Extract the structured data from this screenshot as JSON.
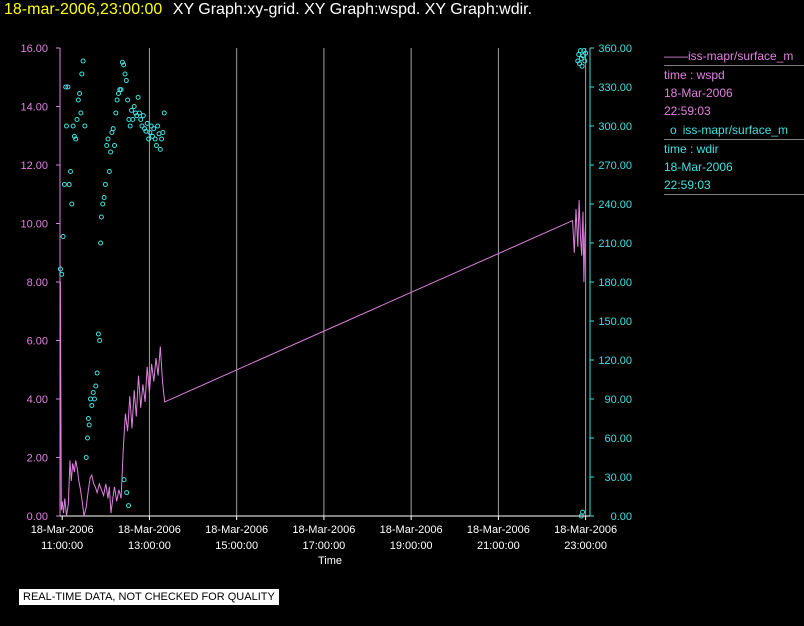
{
  "header": {
    "timestamp": "18-mar-2006,23:00:00",
    "titles": "XY Graph:xy-grid.  XY Graph:wspd.  XY Graph:wdir."
  },
  "legend": [
    {
      "symbol": "——",
      "name": "iss-mapr/surface_m",
      "line2": "time : wspd",
      "line3": "18-Mar-2006",
      "line4": "22:59:03",
      "color": "#e080e0"
    },
    {
      "symbol": "o",
      "name": "iss-mapr/surface_m",
      "line2": "time : wdir",
      "line3": "18-Mar-2006",
      "line4": "22:59:03",
      "color": "#40e0e0"
    }
  ],
  "quality_note": "REAL-TIME DATA, NOT CHECKED FOR QUALITY",
  "chart_data": {
    "type": "line",
    "xlabel": "Time",
    "x_ticks": [
      {
        "date": "18-Mar-2006",
        "time": "11:00:00",
        "h": 11
      },
      {
        "date": "18-Mar-2006",
        "time": "13:00:00",
        "h": 13
      },
      {
        "date": "18-Mar-2006",
        "time": "15:00:00",
        "h": 15
      },
      {
        "date": "18-Mar-2006",
        "time": "17:00:00",
        "h": 17
      },
      {
        "date": "18-Mar-2006",
        "time": "19:00:00",
        "h": 19
      },
      {
        "date": "18-Mar-2006",
        "time": "21:00:00",
        "h": 21
      },
      {
        "date": "18-Mar-2006",
        "time": "23:00:00",
        "h": 23
      }
    ],
    "xlim_hours": [
      10.95,
      23.1
    ],
    "y_left": {
      "lim": [
        0,
        16
      ],
      "ticks": [
        "0.00",
        "2.00",
        "4.00",
        "6.00",
        "8.00",
        "10.00",
        "12.00",
        "14.00",
        "16.00"
      ],
      "color": "#e080e0"
    },
    "y_right": {
      "lim": [
        0,
        360
      ],
      "ticks": [
        "0.00",
        "30.00",
        "60.00",
        "90.00",
        "120.00",
        "150.00",
        "180.00",
        "210.00",
        "240.00",
        "270.00",
        "300.00",
        "330.00",
        "360.00"
      ],
      "color": "#40e0e0"
    },
    "grid_vertical": true,
    "series": [
      {
        "name": "iss-mapr/surface_m time : wspd",
        "axis": "left",
        "style": "line",
        "color": "#e080e0",
        "points": [
          [
            10.96,
            8.0
          ],
          [
            10.98,
            0.2
          ],
          [
            11.0,
            0.5
          ],
          [
            11.03,
            0.1
          ],
          [
            11.06,
            0.6
          ],
          [
            11.1,
            0.0
          ],
          [
            11.14,
            0.4
          ],
          [
            11.18,
            1.9
          ],
          [
            11.21,
            1.2
          ],
          [
            11.24,
            1.8
          ],
          [
            11.28,
            1.5
          ],
          [
            11.31,
            1.9
          ],
          [
            11.35,
            1.6
          ],
          [
            11.38,
            1.2
          ],
          [
            11.42,
            0.9
          ],
          [
            11.46,
            0.5
          ],
          [
            11.5,
            0.0
          ],
          [
            11.55,
            0.3
          ],
          [
            11.6,
            0.9
          ],
          [
            11.64,
            1.3
          ],
          [
            11.68,
            1.4
          ],
          [
            11.72,
            1.1
          ],
          [
            11.76,
            1.0
          ],
          [
            11.8,
            0.8
          ],
          [
            11.85,
            1.1
          ],
          [
            11.9,
            0.9
          ],
          [
            11.95,
            0.7
          ],
          [
            12.0,
            1.1
          ],
          [
            12.05,
            0.6
          ],
          [
            12.08,
            1.0
          ],
          [
            12.12,
            0.1
          ],
          [
            12.16,
            0.6
          ],
          [
            12.2,
            1.0
          ],
          [
            12.25,
            0.5
          ],
          [
            12.3,
            0.9
          ],
          [
            12.35,
            0.6
          ],
          [
            12.4,
            2.3
          ],
          [
            12.45,
            3.5
          ],
          [
            12.5,
            2.9
          ],
          [
            12.55,
            4.1
          ],
          [
            12.6,
            3.0
          ],
          [
            12.65,
            4.3
          ],
          [
            12.7,
            3.4
          ],
          [
            12.75,
            4.8
          ],
          [
            12.8,
            3.7
          ],
          [
            12.85,
            4.5
          ],
          [
            12.9,
            3.9
          ],
          [
            12.95,
            5.1
          ],
          [
            13.0,
            4.2
          ],
          [
            13.05,
            5.2
          ],
          [
            13.1,
            4.6
          ],
          [
            13.15,
            5.4
          ],
          [
            13.2,
            4.8
          ],
          [
            13.25,
            5.8
          ],
          [
            13.3,
            4.6
          ],
          [
            13.35,
            3.9
          ],
          [
            22.7,
            10.1
          ],
          [
            22.74,
            9.0
          ],
          [
            22.78,
            10.5
          ],
          [
            22.82,
            9.2
          ],
          [
            22.85,
            10.8
          ],
          [
            22.88,
            9.6
          ],
          [
            22.91,
            8.9
          ],
          [
            22.94,
            10.4
          ],
          [
            22.96,
            8.0
          ],
          [
            22.98,
            9.5
          ],
          [
            23.0,
            10.0
          ]
        ]
      },
      {
        "name": "iss-mapr/surface_m time : wdir",
        "axis": "right",
        "style": "points",
        "color": "#40e0e0",
        "points": [
          [
            10.96,
            190
          ],
          [
            10.99,
            186
          ],
          [
            11.02,
            215
          ],
          [
            11.05,
            255
          ],
          [
            11.08,
            330
          ],
          [
            11.1,
            300
          ],
          [
            11.13,
            330
          ],
          [
            11.16,
            255
          ],
          [
            11.19,
            265
          ],
          [
            11.22,
            240
          ],
          [
            11.25,
            300
          ],
          [
            11.28,
            292
          ],
          [
            11.31,
            290
          ],
          [
            11.34,
            305
          ],
          [
            11.37,
            320
          ],
          [
            11.4,
            325
          ],
          [
            11.43,
            310
          ],
          [
            11.45,
            340
          ],
          [
            11.48,
            350
          ],
          [
            11.52,
            300
          ],
          [
            11.55,
            45
          ],
          [
            11.58,
            60
          ],
          [
            11.6,
            75
          ],
          [
            11.62,
            70
          ],
          [
            11.65,
            90
          ],
          [
            11.68,
            85
          ],
          [
            11.71,
            95
          ],
          [
            11.74,
            90
          ],
          [
            11.77,
            100
          ],
          [
            11.8,
            110
          ],
          [
            11.83,
            140
          ],
          [
            11.86,
            135
          ],
          [
            11.88,
            210
          ],
          [
            11.9,
            230
          ],
          [
            11.93,
            240
          ],
          [
            11.96,
            245
          ],
          [
            11.99,
            255
          ],
          [
            12.02,
            285
          ],
          [
            12.05,
            290
          ],
          [
            12.08,
            265
          ],
          [
            12.11,
            280
          ],
          [
            12.14,
            295
          ],
          [
            12.17,
            298
          ],
          [
            12.2,
            285
          ],
          [
            12.23,
            310
          ],
          [
            12.26,
            320
          ],
          [
            12.29,
            325
          ],
          [
            12.32,
            328
          ],
          [
            12.35,
            328
          ],
          [
            12.38,
            349
          ],
          [
            12.41,
            347
          ],
          [
            12.44,
            340
          ],
          [
            12.47,
            335
          ],
          [
            12.5,
            320
          ],
          [
            12.53,
            305
          ],
          [
            12.56,
            300
          ],
          [
            12.59,
            312
          ],
          [
            12.62,
            305
          ],
          [
            12.65,
            315
          ],
          [
            12.68,
            310
          ],
          [
            12.71,
            308
          ],
          [
            12.74,
            322
          ],
          [
            12.77,
            310
          ],
          [
            12.8,
            305
          ],
          [
            12.83,
            300
          ],
          [
            12.86,
            308
          ],
          [
            12.89,
            298
          ],
          [
            12.92,
            296
          ],
          [
            12.95,
            302
          ],
          [
            12.98,
            290
          ],
          [
            13.01,
            295
          ],
          [
            13.04,
            300
          ],
          [
            13.07,
            292
          ],
          [
            13.1,
            298
          ],
          [
            13.13,
            290
          ],
          [
            13.16,
            285
          ],
          [
            13.19,
            300
          ],
          [
            13.22,
            294
          ],
          [
            13.25,
            282
          ],
          [
            13.28,
            290
          ],
          [
            13.31,
            295
          ],
          [
            13.34,
            310
          ],
          [
            12.42,
            28
          ],
          [
            12.48,
            18
          ],
          [
            12.52,
            8
          ],
          [
            22.82,
            350
          ],
          [
            22.84,
            355
          ],
          [
            22.86,
            348
          ],
          [
            22.88,
            358
          ],
          [
            22.9,
            352
          ],
          [
            22.92,
            346
          ],
          [
            22.94,
            354
          ],
          [
            22.96,
            358
          ],
          [
            22.98,
            350
          ],
          [
            23.0,
            356
          ],
          [
            22.9,
            0
          ],
          [
            22.93,
            3
          ]
        ]
      }
    ]
  }
}
